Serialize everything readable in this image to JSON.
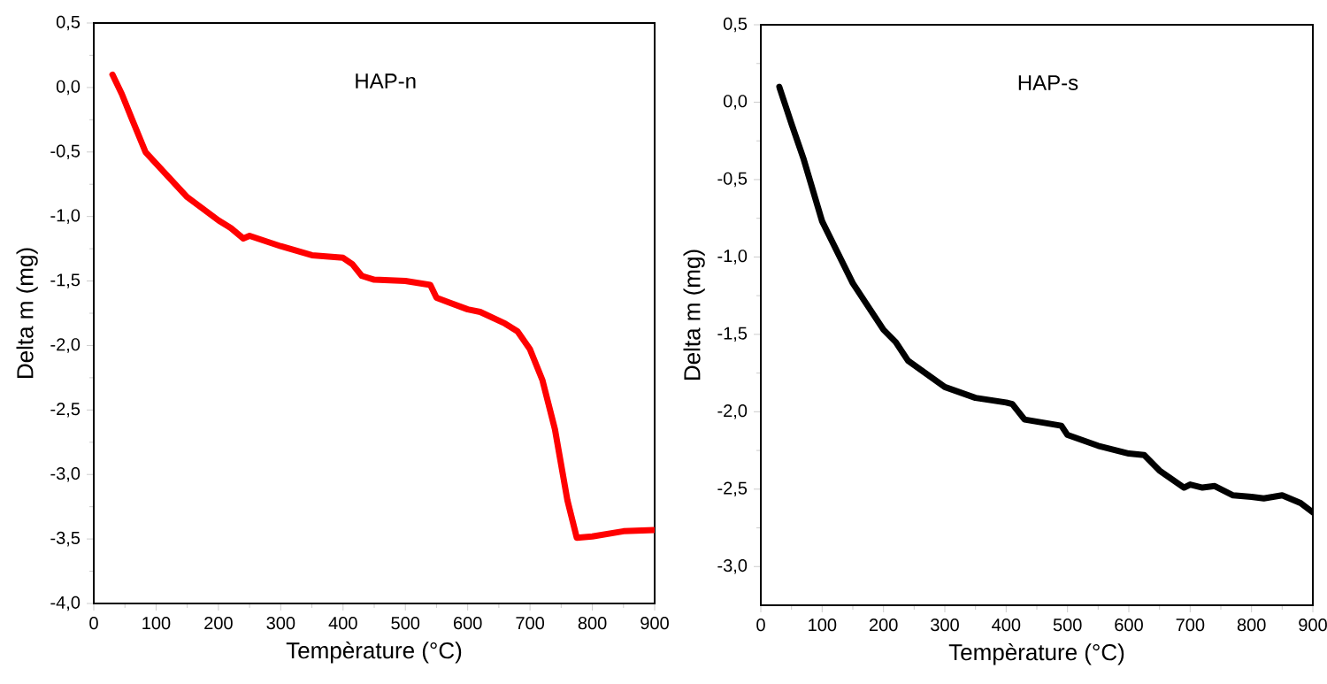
{
  "chart_data": [
    {
      "type": "line",
      "xlabel": "Tempèrature (°C)",
      "ylabel": "Delta m  (mg)",
      "annotations": [
        "HAP-n"
      ],
      "xlim": [
        0,
        900
      ],
      "xticks": [
        0,
        100,
        200,
        300,
        400,
        500,
        600,
        700,
        800,
        900
      ],
      "ylim": [
        -4.0,
        0.5
      ],
      "yticks": [
        {
          "value": -4.0,
          "label": "-4,0"
        },
        {
          "value": -3.5,
          "label": "-3,5"
        },
        {
          "value": -3.0,
          "label": "-3,0"
        },
        {
          "value": -2.5,
          "label": "-2,5"
        },
        {
          "value": -2.0,
          "label": "-2,0"
        },
        {
          "value": -1.5,
          "label": "-1,5"
        },
        {
          "value": -1.0,
          "label": "-1,0"
        },
        {
          "value": -0.5,
          "label": "-0,5"
        },
        {
          "value": 0.0,
          "label": "0,0"
        },
        {
          "value": 0.5,
          "label": "0,5"
        }
      ],
      "series": [
        {
          "color": "#ff0000",
          "x": [
            30,
            45,
            60,
            83,
            100,
            150,
            200,
            220,
            240,
            250,
            300,
            350,
            400,
            415,
            430,
            450,
            500,
            540,
            550,
            600,
            620,
            660,
            680,
            700,
            720,
            740,
            760,
            775,
            800,
            850,
            900
          ],
          "values": [
            0.1,
            -0.05,
            -0.23,
            -0.5,
            -0.59,
            -0.85,
            -1.03,
            -1.09,
            -1.17,
            -1.15,
            -1.23,
            -1.3,
            -1.32,
            -1.37,
            -1.46,
            -1.49,
            -1.5,
            -1.53,
            -1.63,
            -1.72,
            -1.74,
            -1.83,
            -1.89,
            -2.03,
            -2.27,
            -2.65,
            -3.2,
            -3.49,
            -3.48,
            -3.44,
            -3.43
          ]
        }
      ]
    },
    {
      "type": "line",
      "xlabel": "Tempèrature (°C)",
      "ylabel": "Delta m  (mg)",
      "annotations": [
        "HAP-s"
      ],
      "xlim": [
        0,
        900
      ],
      "xticks": [
        0,
        100,
        200,
        300,
        400,
        500,
        600,
        700,
        800,
        900
      ],
      "ylim": [
        -3.25,
        0.5
      ],
      "yticks": [
        {
          "value": -3.0,
          "label": "-3,0"
        },
        {
          "value": -2.5,
          "label": "-2,5"
        },
        {
          "value": -2.0,
          "label": "-2,0"
        },
        {
          "value": -1.5,
          "label": "-1,5"
        },
        {
          "value": -1.0,
          "label": "-1,0"
        },
        {
          "value": -0.5,
          "label": "-0,5"
        },
        {
          "value": 0.0,
          "label": "0,0"
        },
        {
          "value": 0.5,
          "label": "0,5"
        }
      ],
      "series": [
        {
          "color": "#000000",
          "x": [
            30,
            50,
            70,
            100,
            150,
            200,
            220,
            240,
            300,
            350,
            400,
            410,
            430,
            460,
            490,
            500,
            550,
            600,
            625,
            650,
            690,
            700,
            720,
            740,
            770,
            800,
            820,
            850,
            880,
            900
          ],
          "values": [
            0.1,
            -0.14,
            -0.37,
            -0.77,
            -1.17,
            -1.47,
            -1.55,
            -1.67,
            -1.84,
            -1.91,
            -1.94,
            -1.95,
            -2.05,
            -2.07,
            -2.09,
            -2.15,
            -2.22,
            -2.27,
            -2.28,
            -2.38,
            -2.49,
            -2.47,
            -2.49,
            -2.48,
            -2.54,
            -2.55,
            -2.56,
            -2.54,
            -2.59,
            -2.65
          ]
        }
      ]
    }
  ]
}
